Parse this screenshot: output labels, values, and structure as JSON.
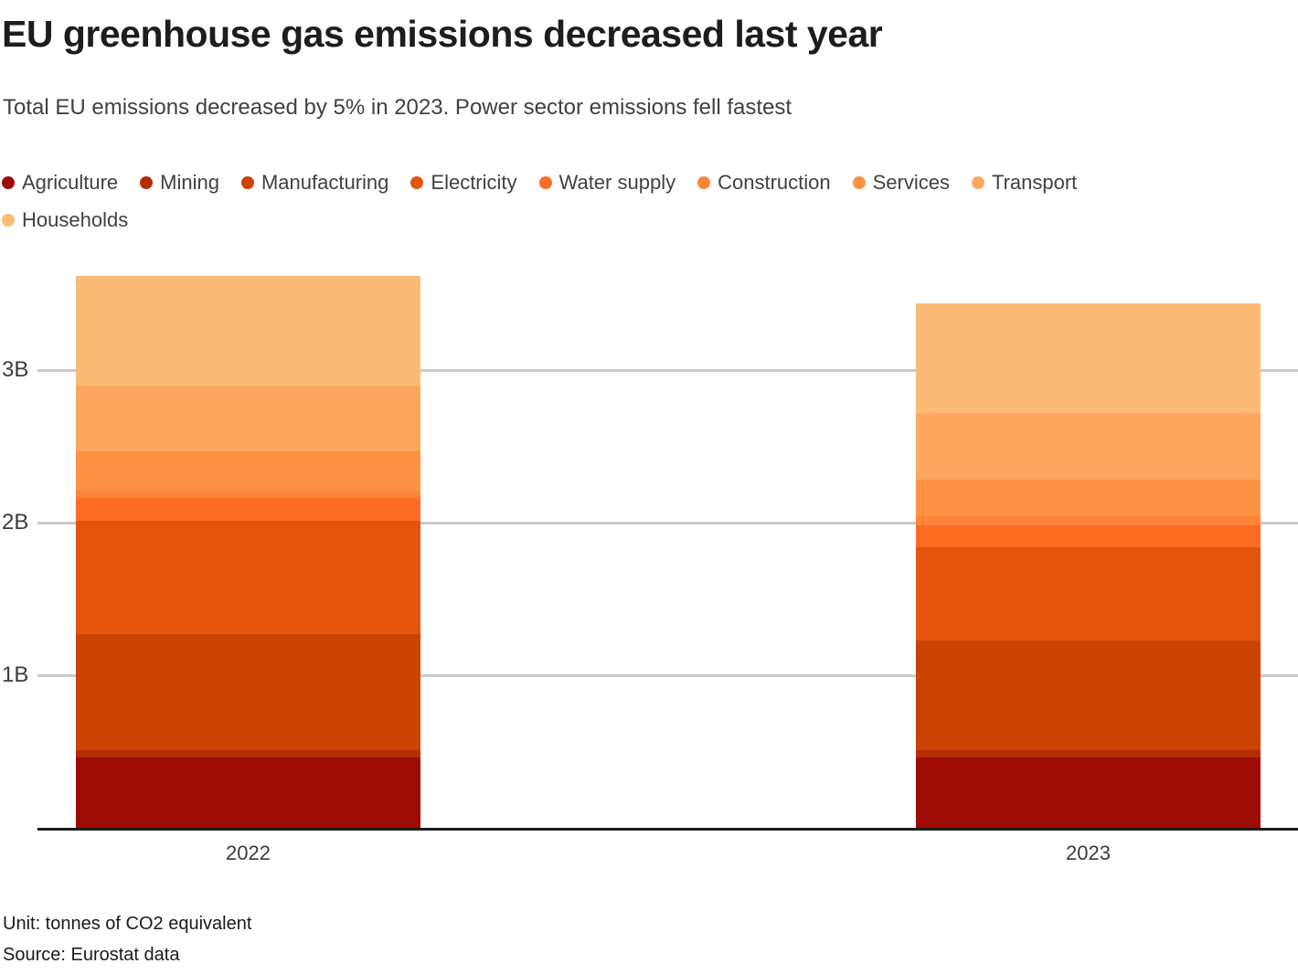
{
  "header": {
    "title": "EU greenhouse gas emissions decreased last year",
    "subtitle": "Total EU emissions decreased by 5% in 2023. Power sector emissions fell fastest"
  },
  "chart_data": {
    "type": "bar",
    "stacked": true,
    "title": "EU greenhouse gas emissions decreased last year",
    "subtitle": "Total EU emissions decreased by 5% in 2023. Power sector emissions fell fastest",
    "categories": [
      "2022",
      "2023"
    ],
    "series": [
      {
        "name": "Agriculture",
        "color": "#9e0b02",
        "values": [
          0.46,
          0.46
        ]
      },
      {
        "name": "Mining",
        "color": "#b42d04",
        "values": [
          0.05,
          0.05
        ]
      },
      {
        "name": "Manufacturing",
        "color": "#cb4201",
        "values": [
          0.76,
          0.72
        ]
      },
      {
        "name": "Electricity",
        "color": "#e3550d",
        "values": [
          0.74,
          0.61
        ]
      },
      {
        "name": "Water supply",
        "color": "#fd6c23",
        "values": [
          0.15,
          0.14
        ]
      },
      {
        "name": "Construction",
        "color": "#fb8538",
        "values": [
          0.05,
          0.06
        ]
      },
      {
        "name": "Services",
        "color": "#fd9245",
        "values": [
          0.26,
          0.24
        ]
      },
      {
        "name": "Transport",
        "color": "#fda75f",
        "values": [
          0.43,
          0.44
        ]
      },
      {
        "name": "Households",
        "color": "#fcbb74",
        "values": [
          0.72,
          0.72
        ]
      }
    ],
    "y_ticks": [
      {
        "label": "1B",
        "value": 1
      },
      {
        "label": "2B",
        "value": 2
      },
      {
        "label": "3B",
        "value": 3
      }
    ],
    "ylim": [
      0,
      3.66
    ],
    "grid": true,
    "legend_position": "top",
    "legend_rows": [
      8,
      1
    ],
    "value_unit": "billions of tonnes of CO2 equivalent"
  },
  "footer": {
    "unit_note": "Unit: tonnes of CO2 equivalent",
    "source_note": "Source: Eurostat data"
  }
}
